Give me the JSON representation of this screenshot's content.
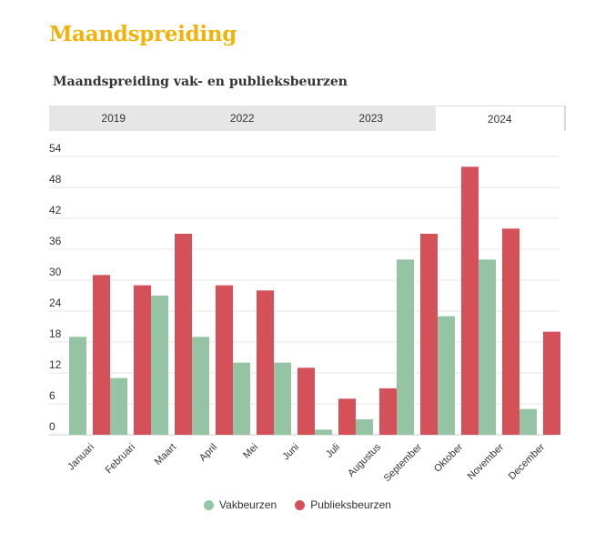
{
  "page": {
    "title": "Maandspreiding",
    "chart_title": "Maandspreiding vak- en publieksbeurzen"
  },
  "tabs": [
    {
      "label": "2019",
      "active": false
    },
    {
      "label": "2022",
      "active": false
    },
    {
      "label": "2023",
      "active": false
    },
    {
      "label": "2024",
      "active": true
    }
  ],
  "chart_data": {
    "type": "bar",
    "categories": [
      "Januari",
      "Februari",
      "Maart",
      "April",
      "Mei",
      "Juni",
      "Juli",
      "Augustus",
      "September",
      "Oktober",
      "November",
      "December"
    ],
    "series": [
      {
        "name": "Vakbeurzen",
        "color": "#95c4a4",
        "values": [
          19,
          11,
          27,
          19,
          14,
          14,
          1,
          3,
          34,
          23,
          34,
          5
        ]
      },
      {
        "name": "Publieksbeurzen",
        "color": "#d4515a",
        "values": [
          31,
          29,
          39,
          29,
          28,
          13,
          7,
          9,
          39,
          52,
          40,
          20
        ]
      }
    ],
    "y_ticks": [
      0,
      6,
      12,
      18,
      24,
      30,
      36,
      42,
      48,
      54
    ],
    "ylim": [
      0,
      54
    ],
    "grid": true,
    "legend_position": "bottom"
  }
}
